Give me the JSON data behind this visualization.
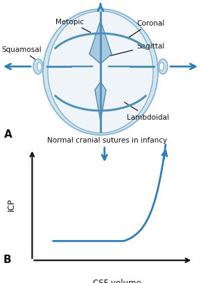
{
  "bg_color_top": "#ffffff",
  "bg_color_bottom": "#dde8f2",
  "blue_color": "#2e7db5",
  "skull_outer_face": "#d4e4f0",
  "skull_outer_edge": "#7ab0d0",
  "skull_inner_face": "#eef4f8",
  "skull_inner_edge": "#7ab0d0",
  "suture_color": "#5090b8",
  "fontanelle_color": "#a8c8e0",
  "ear_face": "#c8dcea",
  "ear_edge": "#7ab0d0",
  "label_color": "#111111",
  "arrow_color": "#2e7db5",
  "axis_color": "#111111",
  "panel_A_label": "A",
  "panel_B_label": "B",
  "caption_A": "Normal cranial sutures in infancy",
  "xlabel_B": "CSF volume",
  "ylabel_B": "ICP",
  "label_metopic": "Metopic",
  "label_coronal": "Coronal",
  "label_sagittal": "Sagittal",
  "label_squamosal": "Squamosal",
  "label_lambdoidal": "Lambdoidal"
}
